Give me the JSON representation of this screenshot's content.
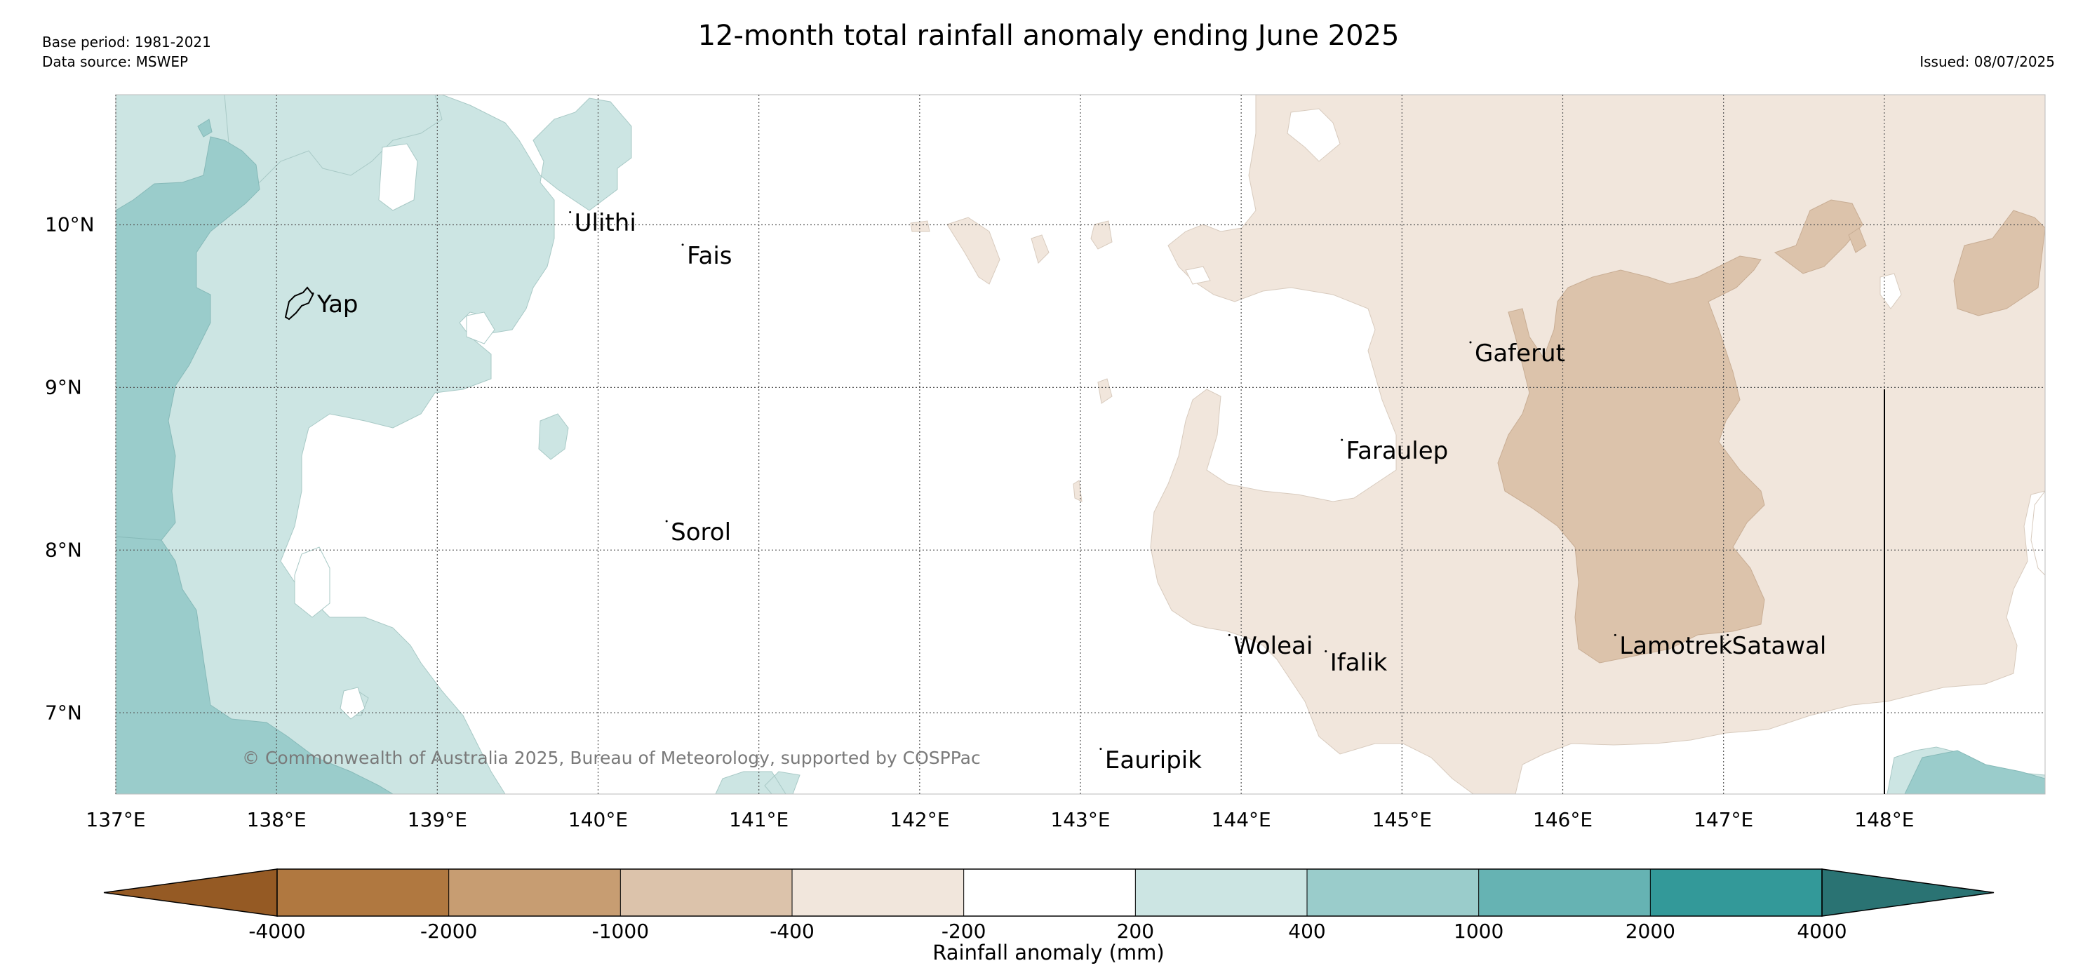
{
  "header": {
    "title": "12-month total rainfall anomaly ending June 2025",
    "base_period": "Base period: 1981-2021",
    "data_source": "Data source: MSWEP",
    "issued": "Issued: 08/07/2025"
  },
  "map": {
    "lon_range": [
      137,
      149
    ],
    "lat_range": [
      6.5,
      10.8
    ],
    "lon_labels": [
      "137°E",
      "138°E",
      "139°E",
      "140°E",
      "141°E",
      "142°E",
      "143°E",
      "144°E",
      "145°E",
      "146°E",
      "147°E",
      "148°E"
    ],
    "lat_labels": [
      "10°N",
      "9°N",
      "8°N",
      "7°N"
    ],
    "grid": true,
    "places": [
      {
        "name": "Yap",
        "lon": 138.2,
        "lat": 9.5
      },
      {
        "name": "Ulithi",
        "lon": 139.8,
        "lat": 10.0
      },
      {
        "name": "Fais",
        "lon": 140.5,
        "lat": 9.8
      },
      {
        "name": "Sorol",
        "lon": 140.4,
        "lat": 8.1
      },
      {
        "name": "Gaferut",
        "lon": 145.4,
        "lat": 9.2
      },
      {
        "name": "Faraulep",
        "lon": 144.6,
        "lat": 8.6
      },
      {
        "name": "Woleai",
        "lon": 143.9,
        "lat": 7.4
      },
      {
        "name": "Ifalik",
        "lon": 144.5,
        "lat": 7.3
      },
      {
        "name": "Lamotrek",
        "lon": 146.3,
        "lat": 7.4
      },
      {
        "name": "Satawal",
        "lon": 147.0,
        "lat": 7.4
      },
      {
        "name": "Eauripik",
        "lon": 143.1,
        "lat": 6.7
      }
    ],
    "copyright": "© Commonwealth of Australia 2025, Bureau of Meteorology, supported by COSPPac"
  },
  "colorbar": {
    "label": "Rainfall anomaly (mm)",
    "ticks": [
      "-4000",
      "-2000",
      "-1000",
      "-400",
      "-200",
      "200",
      "400",
      "1000",
      "2000",
      "4000"
    ],
    "colors": {
      "below_-4000": "#955a24",
      "-4000_-2000": "#b07840",
      "-2000_-1000": "#c79d72",
      "-1000_-400": "#dcc3ab",
      "-400_-200": "#f1e6dc",
      "-200_200": "#ffffff",
      "200_400": "#cce5e3",
      "400_1000": "#9acccb",
      "1000_2000": "#66b3b3",
      "2000_4000": "#339999",
      "above_4000": "#2a7373"
    }
  }
}
